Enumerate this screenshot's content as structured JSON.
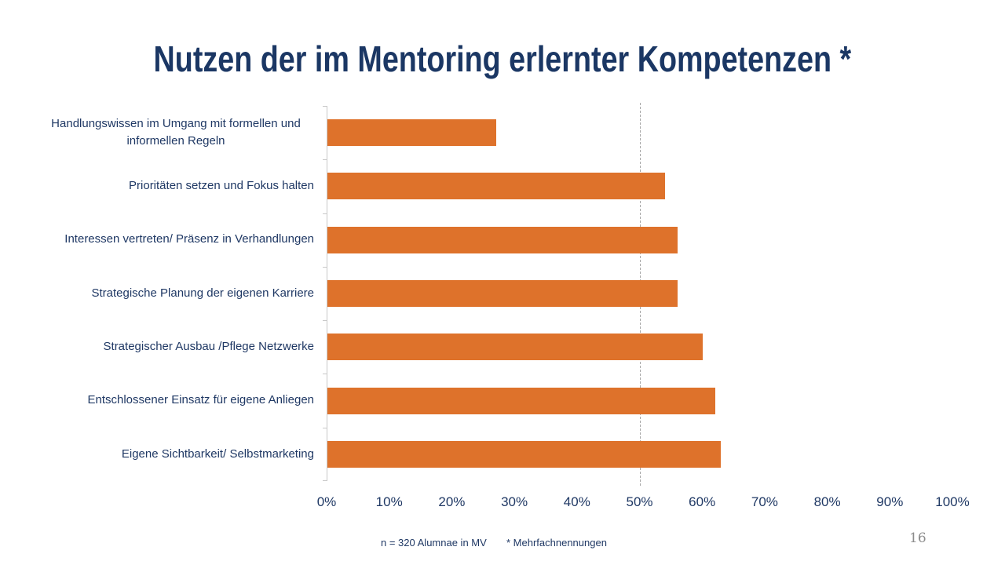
{
  "title": "Nutzen der im Mentoring erlernter Kompetenzen *",
  "chart_data": {
    "type": "bar",
    "orientation": "horizontal",
    "title": "Nutzen der im Mentoring erlernter Kompetenzen *",
    "categories": [
      "Handlungswissen im Umgang mit formellen und informellen Regeln",
      "Prioritäten setzen und Fokus halten",
      "Interessen vertreten/ Präsenz in Verhandlungen",
      "Strategische Planung der eigenen Karriere",
      "Strategischer Ausbau /Pflege Netzwerke",
      "Entschlossener Einsatz für eigene Anliegen",
      "Eigene Sichtbarkeit/ Selbstmarketing"
    ],
    "values": [
      27,
      54,
      56,
      56,
      60,
      62,
      63
    ],
    "value_unit": "%",
    "xlim": [
      0,
      100
    ],
    "x_tick_labels": [
      "0%",
      "10%",
      "20%",
      "30%",
      "40%",
      "50%",
      "60%",
      "70%",
      "80%",
      "90%",
      "100%"
    ],
    "gridline_at_percent": 50,
    "grid": "single dashed vertical line at 50%",
    "legend": "none",
    "colors": {
      "bar": "#DE722B",
      "text_navy": "#1F3864",
      "axis_line": "#C9C9C9",
      "gridline": "#A6A6A6"
    }
  },
  "footer": {
    "sample_note": "n = 320 Alumnae in MV",
    "asterisk_note": "* Mehrfachnennungen"
  },
  "page_number": "16"
}
